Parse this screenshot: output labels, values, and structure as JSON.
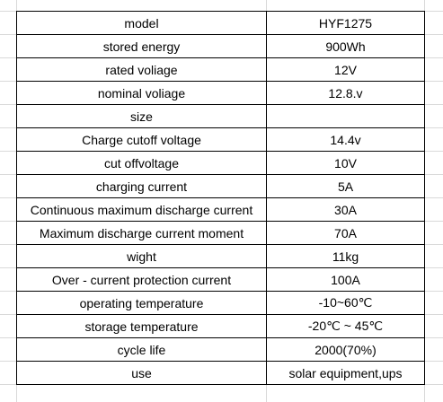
{
  "table": {
    "rows": [
      [
        "model",
        "HYF1275"
      ],
      [
        "stored energy",
        "900Wh"
      ],
      [
        "rated voliage",
        "12V"
      ],
      [
        "nominal voliage",
        "12.8.v"
      ],
      [
        "size"
      ],
      [
        "Charge cutoff voltage",
        "14.4v"
      ],
      [
        "cut offvoltage",
        "10V"
      ],
      [
        "charging current",
        "5A"
      ],
      [
        "Continuous maximum discharge current",
        "30A"
      ],
      [
        "Maximum discharge current moment",
        "70A"
      ],
      [
        "wight",
        "11kg"
      ],
      [
        "Over - current protection current",
        "100A"
      ],
      [
        "operating temperature",
        "-10~60℃"
      ],
      [
        "storage temperature",
        "-20℃ ~ 45℃"
      ],
      [
        "cycle life",
        "2000(70%)"
      ],
      [
        "use",
        "solar equipment,ups"
      ]
    ]
  }
}
